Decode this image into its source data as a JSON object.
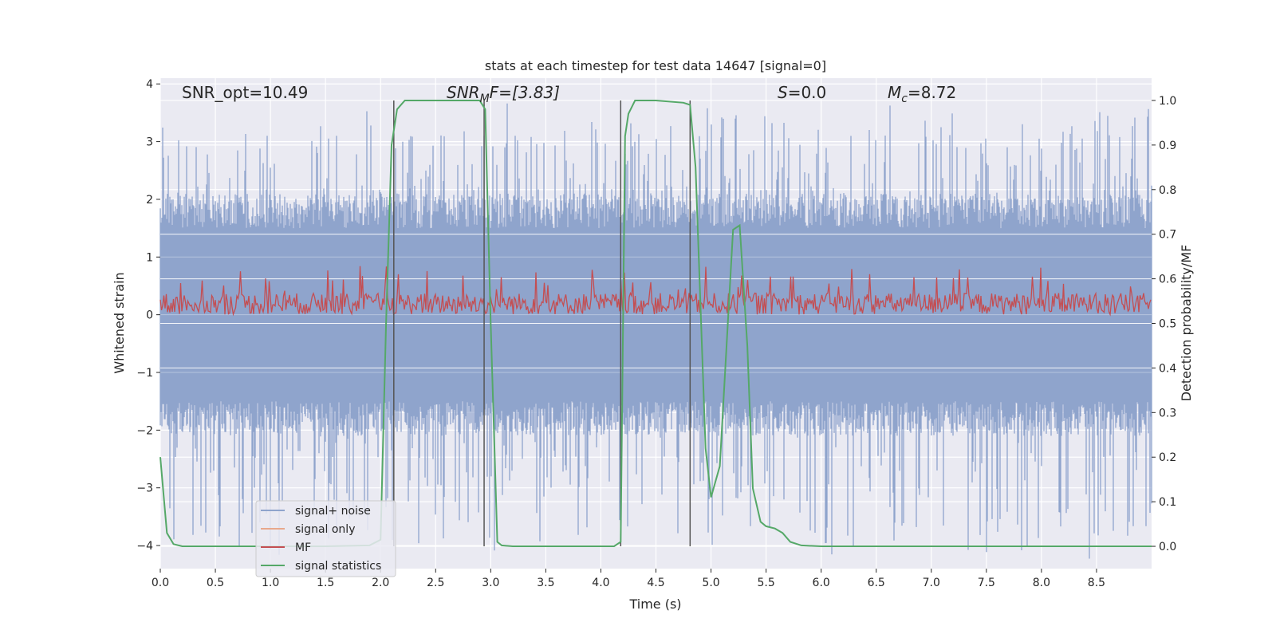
{
  "chart_data": {
    "type": "line",
    "title": "stats at each timestep for test data 14647 [signal=0]",
    "xlabel": "Time (s)",
    "ylabel_left": "Whitened strain",
    "ylabel_right": "Detection probability/MF",
    "xlim": [
      0,
      9
    ],
    "ylim_left": [
      -4.4,
      4.1
    ],
    "ylim_right": [
      -0.05,
      1.05
    ],
    "x_ticks": [
      0.0,
      0.5,
      1.0,
      1.5,
      2.0,
      2.5,
      3.0,
      3.5,
      4.0,
      4.5,
      5.0,
      5.5,
      6.0,
      6.5,
      7.0,
      7.5,
      8.0,
      8.5
    ],
    "x_tick_labels": [
      "0.0",
      "0.5",
      "1.0",
      "1.5",
      "2.0",
      "2.5",
      "3.0",
      "3.5",
      "4.0",
      "4.5",
      "5.0",
      "5.5",
      "6.0",
      "6.5",
      "7.0",
      "7.5",
      "8.0",
      "8.5"
    ],
    "y_left_ticks": [
      4,
      3,
      2,
      1,
      0,
      -1,
      -2,
      -3,
      -4
    ],
    "y_left_tick_labels": [
      "4",
      "3",
      "2",
      "1",
      "0",
      "−1",
      "−2",
      "−3",
      "−4"
    ],
    "y_right_ticks": [
      1.0,
      0.9,
      0.8,
      0.7,
      0.6,
      0.5,
      0.4,
      0.3,
      0.2,
      0.1,
      0.0
    ],
    "y_right_tick_labels": [
      "1.0",
      "0.9",
      "0.8",
      "0.7",
      "0.6",
      "0.5",
      "0.4",
      "0.3",
      "0.2",
      "0.1",
      "0.0"
    ],
    "grid": true,
    "legend_position": "lower-left",
    "annotations": {
      "snr_opt": "SNR_opt=10.49",
      "snr_mf_base": "SNR",
      "snr_mf_sub": "M",
      "snr_mf_rest": "F=[3.83]",
      "s_base": "S",
      "s_rest": "=0.0",
      "mc_base": "M",
      "mc_sub": "c",
      "mc_rest": "=8.72"
    },
    "vertical_lines_x": [
      2.12,
      2.94,
      4.18,
      4.81
    ],
    "vertical_lines_range_right": [
      0.0,
      1.0
    ],
    "series": [
      {
        "name": "signal+ noise",
        "color": "#8fa4cc",
        "axis": "left",
        "description_values": {
          "t_start": 0,
          "t_end": 9,
          "core_amplitude": 1.5,
          "max_peak": 3.5,
          "min_peak": -4.0
        }
      },
      {
        "name": "signal only",
        "color": "#e8a88c",
        "axis": "left",
        "values": []
      },
      {
        "name": "MF",
        "color": "#c44e52",
        "axis": "right",
        "description_values": {
          "t_start": 0,
          "t_end": 9,
          "mean": 0.55,
          "low": 0.52,
          "high": 0.63
        }
      },
      {
        "name": "signal statistics",
        "color": "#55a868",
        "axis": "right",
        "x": [
          0.0,
          0.06,
          0.12,
          0.2,
          0.3,
          0.5,
          1.0,
          1.5,
          1.9,
          2.0,
          2.05,
          2.1,
          2.15,
          2.22,
          2.3,
          2.6,
          2.9,
          2.95,
          3.0,
          3.06,
          3.1,
          3.2,
          3.5,
          4.0,
          4.12,
          4.18,
          4.22,
          4.25,
          4.31,
          4.5,
          4.75,
          4.81,
          4.86,
          4.95,
          5.0,
          5.08,
          5.2,
          5.26,
          5.33,
          5.38,
          5.45,
          5.5,
          5.58,
          5.65,
          5.72,
          5.82,
          6.0,
          7.0,
          8.0,
          9.0
        ],
        "values": [
          0.2,
          0.03,
          0.005,
          0.0,
          0.0,
          0.0,
          0.0,
          0.0,
          0.002,
          0.015,
          0.5,
          0.9,
          0.98,
          1.0,
          1.0,
          1.0,
          1.0,
          0.98,
          0.5,
          0.01,
          0.002,
          0.0,
          0.0,
          0.0,
          0.0,
          0.01,
          0.92,
          0.97,
          1.0,
          1.0,
          0.995,
          0.99,
          0.85,
          0.22,
          0.11,
          0.18,
          0.71,
          0.72,
          0.45,
          0.13,
          0.055,
          0.045,
          0.04,
          0.03,
          0.01,
          0.002,
          0.0,
          0.0,
          0.0,
          0.0
        ]
      }
    ]
  }
}
